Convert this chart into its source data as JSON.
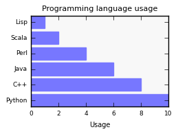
{
  "title": "Programming language usage",
  "categories": [
    "Python",
    "C++",
    "Java",
    "Perl",
    "Scala",
    "Lisp"
  ],
  "values": [
    10,
    8,
    6,
    4,
    2,
    1
  ],
  "bar_color": "#7777ff",
  "xlabel": "Usage",
  "xlim": [
    0,
    10
  ],
  "xticks": [
    0,
    2,
    4,
    6,
    8,
    10
  ],
  "background_color": "#ffffff",
  "axes_facecolor": "#f8f8f8",
  "title_fontsize": 8,
  "label_fontsize": 7,
  "tick_fontsize": 6.5,
  "bar_height": 0.8
}
